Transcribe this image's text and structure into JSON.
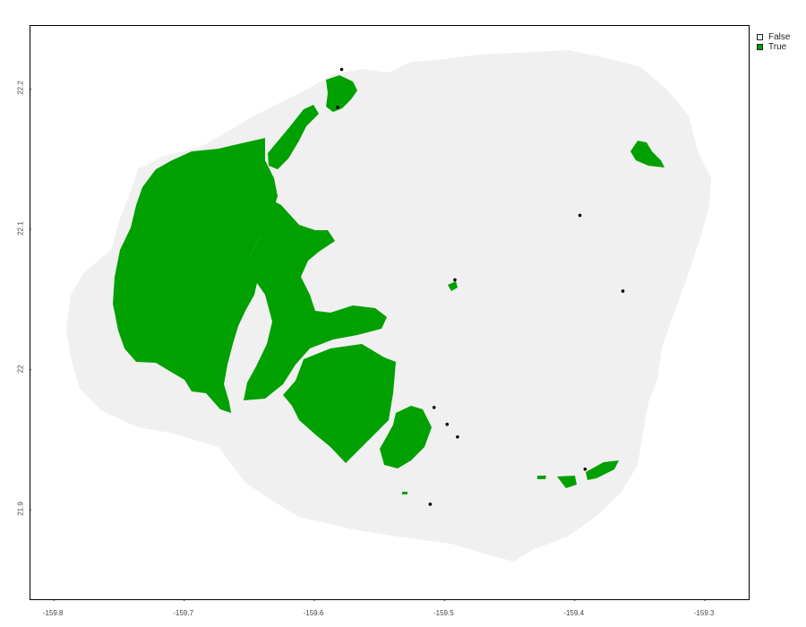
{
  "legend": {
    "items": [
      {
        "label": "False",
        "color": "#f0f0f0"
      },
      {
        "label": "True",
        "color": "#00a000"
      }
    ]
  },
  "axes": {
    "x": {
      "ticks": [
        -159.8,
        -159.7,
        -159.6,
        -159.5,
        -159.4,
        -159.3
      ],
      "labels": [
        "-159.8",
        "-159.7",
        "-159.6",
        "-159.5",
        "-159.4",
        "-159.3"
      ],
      "range": [
        -159.818,
        -159.265
      ]
    },
    "y": {
      "ticks": [
        21.9,
        22.0,
        22.1,
        22.2
      ],
      "labels": [
        "21.9",
        "22",
        "22.1",
        "22.2"
      ],
      "range": [
        21.835,
        22.245
      ]
    }
  },
  "colors": {
    "island": "#f0f0f0",
    "habitat": "#00a000",
    "point": "#000000"
  },
  "points": [
    {
      "lon": -159.579,
      "lat": 22.214
    },
    {
      "lon": -159.582,
      "lat": 22.187
    },
    {
      "lon": -159.396,
      "lat": 22.11
    },
    {
      "lon": -159.363,
      "lat": 22.056
    },
    {
      "lon": -159.492,
      "lat": 22.064
    },
    {
      "lon": -159.508,
      "lat": 21.973
    },
    {
      "lon": -159.498,
      "lat": 21.961
    },
    {
      "lon": -159.49,
      "lat": 21.952
    },
    {
      "lon": -159.392,
      "lat": 21.929
    },
    {
      "lon": -159.511,
      "lat": 21.904
    }
  ]
}
